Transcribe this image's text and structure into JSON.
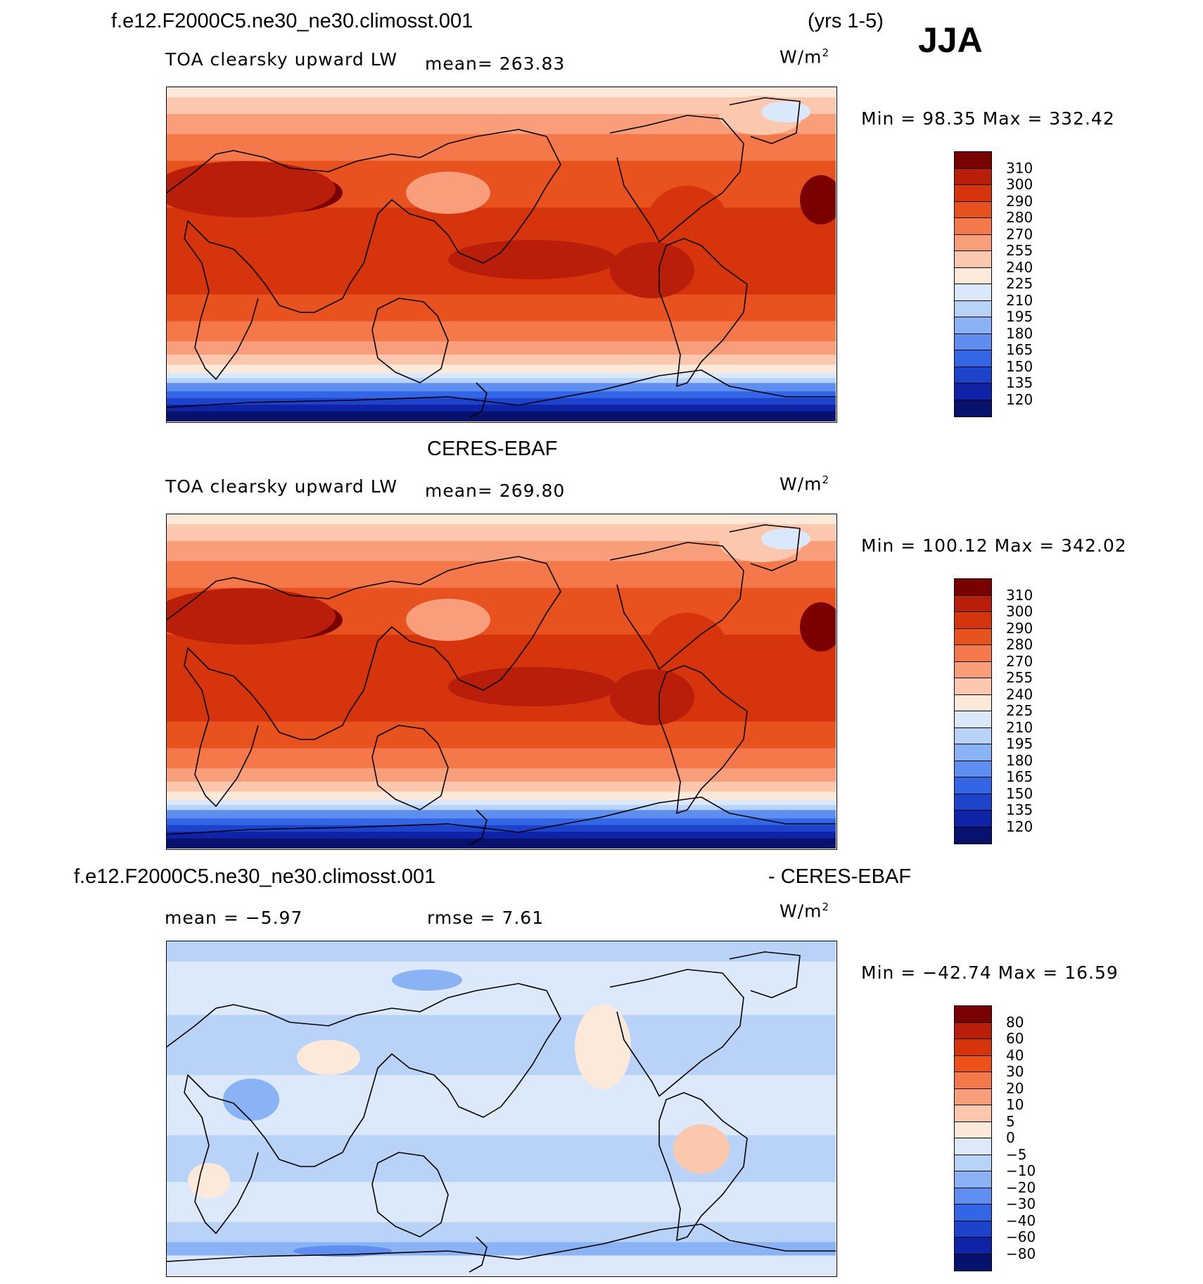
{
  "header": {
    "case_title": "f.e12.F2000C5.ne30_ne30.climosst.001",
    "years": "(yrs 1-5)",
    "season": "JJA"
  },
  "panels": [
    {
      "id": "model",
      "title": "",
      "variable": "TOA clearsky upward LW",
      "mean_text": "mean=  263.83",
      "units_base": "W/m",
      "units_exp": "2",
      "minmax_text": "Min =   98.35 Max = 332.42",
      "colorbar_labels": [
        "310",
        "300",
        "290",
        "280",
        "270",
        "255",
        "240",
        "225",
        "210",
        "195",
        "180",
        "165",
        "150",
        "135",
        "120"
      ],
      "colorbar_colors": [
        "#7a0000",
        "#b81e0a",
        "#d5340c",
        "#e8521f",
        "#f5784a",
        "#f89e7a",
        "#fcc8ad",
        "#fde9da",
        "#d9e8fb",
        "#b9d2f8",
        "#8ab3f5",
        "#5d8ef0",
        "#3366e6",
        "#1d43cc",
        "#0e23a8",
        "#06126b"
      ]
    },
    {
      "id": "obs",
      "title": "CERES-EBAF",
      "variable": "TOA clearsky upward LW",
      "mean_text": "mean=  269.80",
      "units_base": "W/m",
      "units_exp": "2",
      "minmax_text": "Min = 100.12 Max = 342.02",
      "colorbar_labels": [
        "310",
        "300",
        "290",
        "280",
        "270",
        "255",
        "240",
        "225",
        "210",
        "195",
        "180",
        "165",
        "150",
        "135",
        "120"
      ],
      "colorbar_colors": [
        "#7a0000",
        "#b81e0a",
        "#d5340c",
        "#e8521f",
        "#f5784a",
        "#f89e7a",
        "#fcc8ad",
        "#fde9da",
        "#d9e8fb",
        "#b9d2f8",
        "#8ab3f5",
        "#5d8ef0",
        "#3366e6",
        "#1d43cc",
        "#0e23a8",
        "#06126b"
      ]
    },
    {
      "id": "diff",
      "title_left": "f.e12.F2000C5.ne30_ne30.climosst.001",
      "title_right": "- CERES-EBAF",
      "mean_text": "mean =   −5.97",
      "rmse_text": "rmse =    7.61",
      "units_base": "W/m",
      "units_exp": "2",
      "minmax_text": "Min = −42.74 Max =   16.59",
      "colorbar_labels": [
        "80",
        "60",
        "40",
        "30",
        "20",
        "10",
        "5",
        "0",
        "−5",
        "−10",
        "−20",
        "−30",
        "−40",
        "−60",
        "−80"
      ],
      "colorbar_colors": [
        "#7a0000",
        "#b81e0a",
        "#d5340c",
        "#f0501a",
        "#f5784a",
        "#f89e7a",
        "#fcc8ad",
        "#fde9da",
        "#dce9fb",
        "#b9d2f8",
        "#8ab3f5",
        "#5d8ef0",
        "#3366e6",
        "#1d43cc",
        "#0e23a8",
        "#06126b"
      ]
    }
  ]
}
